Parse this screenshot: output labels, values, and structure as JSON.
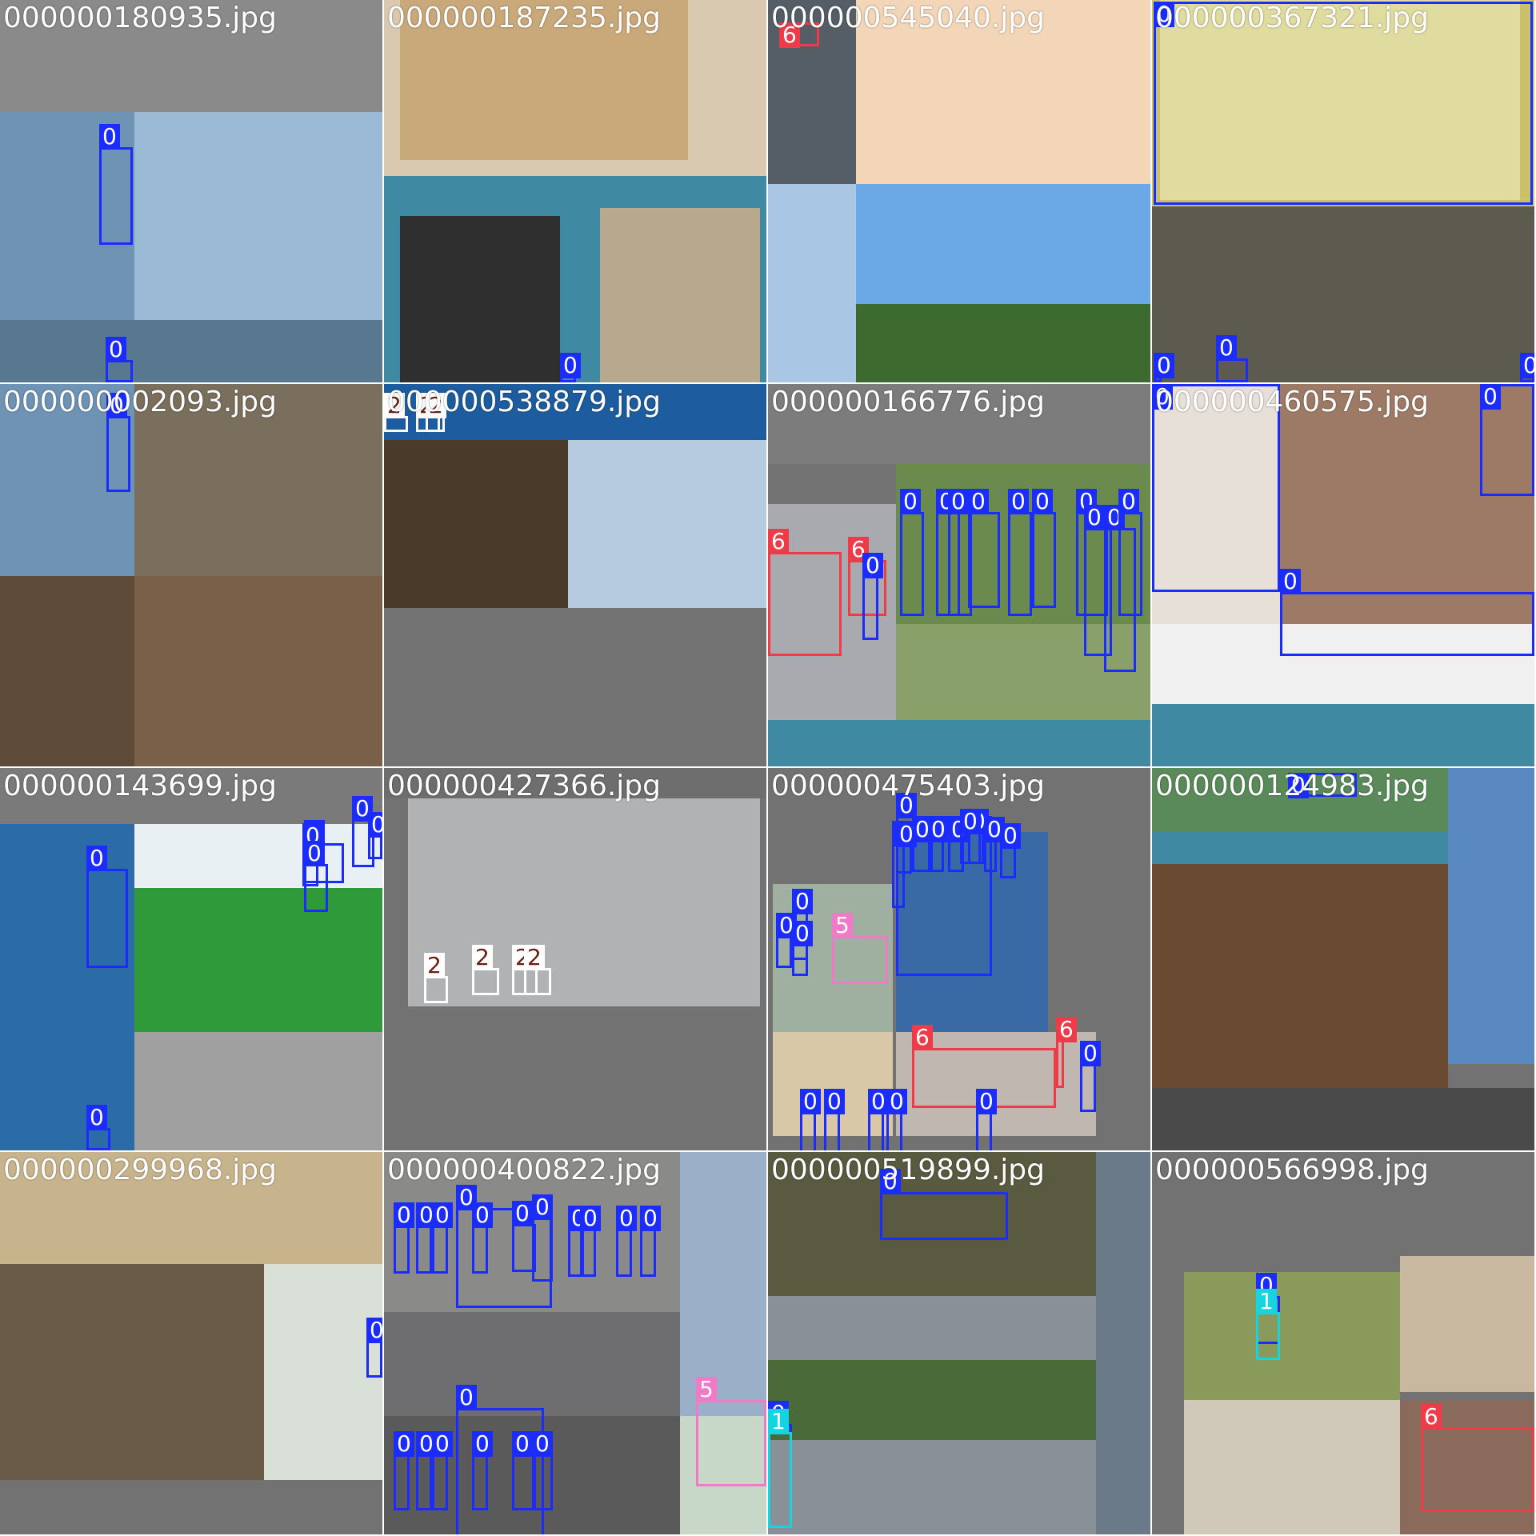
{
  "class_colors": {
    "0": "#1a2cff",
    "1": "#14d4e0",
    "2": "#ffffff",
    "5": "#f07ac8",
    "6": "#ee3b47"
  },
  "label_text_colors": {
    "0": "#ffffff",
    "1": "#ffffff",
    "2": "#6b1d10",
    "5": "#ffffff",
    "6": "#ffffff"
  },
  "tiles": [
    {
      "filename": "000000180935.jpg",
      "boxes": [
        {
          "cls": "0"
        },
        {
          "cls": "0"
        }
      ]
    },
    {
      "filename": "000000187235.jpg",
      "boxes": [
        {
          "cls": "0"
        }
      ]
    },
    {
      "filename": "000000545040.jpg",
      "boxes": [
        {
          "cls": "6"
        }
      ]
    },
    {
      "filename": "000000367321.jpg",
      "boxes": [
        {
          "cls": "0"
        },
        {
          "cls": "0"
        },
        {
          "cls": "0"
        },
        {
          "cls": "0"
        }
      ]
    },
    {
      "filename": "000000002093.jpg",
      "boxes": [
        {
          "cls": "0"
        }
      ]
    },
    {
      "filename": "000000538879.jpg",
      "boxes": [
        {
          "cls": "2"
        },
        {
          "cls": "2"
        },
        {
          "cls": "2"
        }
      ]
    },
    {
      "filename": "000000166776.jpg",
      "boxes": [
        {
          "cls": "6"
        },
        {
          "cls": "6"
        },
        {
          "cls": "0"
        },
        {
          "cls": "0"
        },
        {
          "cls": "0"
        },
        {
          "cls": "0"
        },
        {
          "cls": "0"
        },
        {
          "cls": "0"
        },
        {
          "cls": "0"
        },
        {
          "cls": "0"
        },
        {
          "cls": "0"
        },
        {
          "cls": "0"
        },
        {
          "cls": "0"
        }
      ]
    },
    {
      "filename": "000000460575.jpg",
      "boxes": [
        {
          "cls": "0"
        },
        {
          "cls": "0"
        },
        {
          "cls": "0"
        }
      ]
    },
    {
      "filename": "000000143699.jpg",
      "boxes": [
        {
          "cls": "0"
        },
        {
          "cls": "0"
        },
        {
          "cls": "0"
        },
        {
          "cls": "0"
        },
        {
          "cls": "0"
        },
        {
          "cls": "0"
        },
        {
          "cls": "0"
        }
      ]
    },
    {
      "filename": "000000427366.jpg",
      "boxes": [
        {
          "cls": "2"
        },
        {
          "cls": "2"
        },
        {
          "cls": "2"
        },
        {
          "cls": "2"
        }
      ]
    },
    {
      "filename": "000000475403.jpg",
      "boxes": [
        {
          "cls": "0"
        },
        {
          "cls": "0"
        },
        {
          "cls": "0"
        },
        {
          "cls": "0"
        },
        {
          "cls": "0"
        },
        {
          "cls": "0"
        },
        {
          "cls": "0"
        },
        {
          "cls": "0"
        },
        {
          "cls": "0"
        },
        {
          "cls": "0"
        },
        {
          "cls": "5"
        },
        {
          "cls": "0"
        },
        {
          "cls": "0"
        },
        {
          "cls": "0"
        },
        {
          "cls": "6"
        },
        {
          "cls": "6"
        },
        {
          "cls": "0"
        },
        {
          "cls": "0"
        },
        {
          "cls": "0"
        },
        {
          "cls": "0"
        },
        {
          "cls": "0"
        },
        {
          "cls": "0"
        }
      ]
    },
    {
      "filename": "000000124983.jpg",
      "boxes": [
        {
          "cls": "0"
        }
      ]
    },
    {
      "filename": "000000299968.jpg",
      "boxes": [
        {
          "cls": "0"
        }
      ]
    },
    {
      "filename": "000000400822.jpg",
      "boxes": [
        {
          "cls": "0"
        },
        {
          "cls": "0"
        },
        {
          "cls": "0"
        },
        {
          "cls": "0"
        },
        {
          "cls": "0"
        },
        {
          "cls": "0"
        },
        {
          "cls": "0"
        },
        {
          "cls": "0"
        },
        {
          "cls": "0"
        },
        {
          "cls": "0"
        },
        {
          "cls": "0"
        },
        {
          "cls": "0"
        },
        {
          "cls": "0"
        },
        {
          "cls": "0"
        },
        {
          "cls": "0"
        },
        {
          "cls": "0"
        },
        {
          "cls": "0"
        },
        {
          "cls": "0"
        },
        {
          "cls": "5"
        }
      ]
    },
    {
      "filename": "000000519899.jpg",
      "boxes": [
        {
          "cls": "0"
        },
        {
          "cls": "0"
        },
        {
          "cls": "1"
        }
      ]
    },
    {
      "filename": "000000566998.jpg",
      "boxes": [
        {
          "cls": "0"
        },
        {
          "cls": "1"
        },
        {
          "cls": "6"
        }
      ]
    }
  ]
}
